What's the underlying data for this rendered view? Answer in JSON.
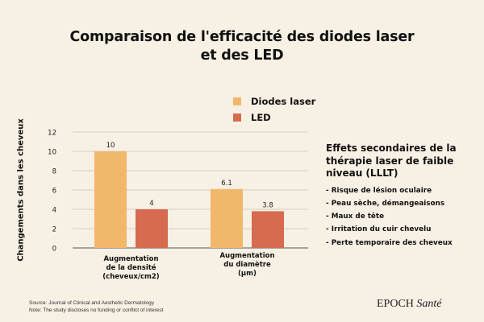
{
  "title_line1": "Comparaison de l'efficacité des diodes laser",
  "title_line2": "et des LED",
  "chart_data": {
    "type": "bar",
    "ylabel": "Changements dans les cheveux",
    "ylim": [
      0,
      12
    ],
    "yticks": [
      0,
      2,
      4,
      6,
      8,
      10,
      12
    ],
    "grid": true,
    "legend_position": "top-right",
    "categories": [
      [
        "Augmentation",
        "de la densité",
        "(cheveux/cm2)"
      ],
      [
        "Augmentation",
        "du diamètre",
        "(µm)"
      ]
    ],
    "series": [
      {
        "name": "Diodes laser",
        "values": [
          10,
          6.1
        ],
        "labels": [
          "10",
          "6.1"
        ],
        "color": "#f1b86c"
      },
      {
        "name": "LED",
        "values": [
          4,
          3.8
        ],
        "labels": [
          "4",
          "3.8"
        ],
        "color": "#d66b50"
      }
    ]
  },
  "side_panel": {
    "title": "Effets secondaires de la thérapie laser de faible niveau (LLLT)",
    "items": [
      "- Risque de lésion oculaire",
      "- Peau sèche, démangeaisons",
      "- Maux de tête",
      "- Irritation du cuir chevelu",
      "- Perte temporaire des cheveux"
    ]
  },
  "source_line1": "Source: Journal of Clinical and Aesthetic Dermatology",
  "source_line2": "Note: The study discloses no funding or conflict of interest",
  "brand": {
    "main": "EPOCH",
    "italic": "Santé"
  }
}
